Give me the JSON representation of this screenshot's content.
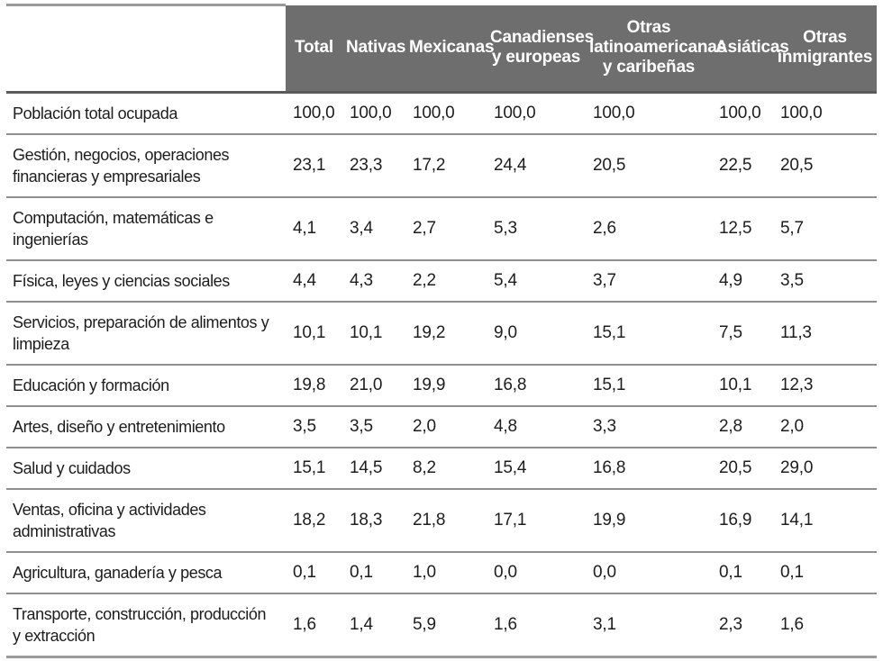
{
  "table": {
    "stub_header": "",
    "columns": [
      "Total",
      "Nativas",
      "Mexicanas",
      "Canadienses y europeas",
      "Otras latinoamericanas y caribeñas",
      "Asiáticas",
      "Otras inmigrantes"
    ],
    "rows": [
      {
        "label": "Población total ocupada",
        "values": [
          "100,0",
          "100,0",
          "100,0",
          "100,0",
          "100,0",
          "100,0",
          "100,0"
        ]
      },
      {
        "label": "Gestión, negocios, operaciones financieras y empresariales",
        "values": [
          "23,1",
          "23,3",
          "17,2",
          "24,4",
          "20,5",
          "22,5",
          "20,5"
        ]
      },
      {
        "label": "Computación, matemáticas e ingenierías",
        "values": [
          "4,1",
          "3,4",
          "2,7",
          "5,3",
          "2,6",
          "12,5",
          "5,7"
        ]
      },
      {
        "label": "Física, leyes y ciencias sociales",
        "values": [
          "4,4",
          "4,3",
          "2,2",
          "5,4",
          "3,7",
          "4,9",
          "3,5"
        ]
      },
      {
        "label": "Servicios, preparación de alimentos y limpieza",
        "values": [
          "10,1",
          "10,1",
          "19,2",
          "9,0",
          "15,1",
          "7,5",
          "11,3"
        ]
      },
      {
        "label": "Educación y formación",
        "values": [
          "19,8",
          "21,0",
          "19,9",
          "16,8",
          "15,1",
          "10,1",
          "12,3"
        ]
      },
      {
        "label": "Artes, diseño y entretenimiento",
        "values": [
          "3,5",
          "3,5",
          "2,0",
          "4,8",
          "3,3",
          "2,8",
          "2,0"
        ]
      },
      {
        "label": "Salud y cuidados",
        "values": [
          "15,1",
          "14,5",
          "8,2",
          "15,4",
          "16,8",
          "20,5",
          "29,0"
        ]
      },
      {
        "label": "Ventas, oficina y actividades administrativas",
        "values": [
          "18,2",
          "18,3",
          "21,8",
          "17,1",
          "19,9",
          "16,9",
          "14,1"
        ]
      },
      {
        "label": "Agricultura, ganadería y pesca",
        "values": [
          "0,1",
          "0,1",
          "1,0",
          "0,0",
          "0,0",
          "0,1",
          "0,1"
        ]
      },
      {
        "label": "Transporte, construcción, producción y extracción",
        "values": [
          "1,6",
          "1,4",
          "5,9",
          "1,6",
          "3,1",
          "2,3",
          "1,6"
        ]
      }
    ]
  },
  "colors": {
    "header_bg": "#6e6e6e",
    "header_text": "#ffffff",
    "body_text": "#1d1d1d",
    "rule_heavy": "#9a9a9a",
    "rule_under_header": "#5a5a5a",
    "rule_row": "#8f8f8f"
  }
}
